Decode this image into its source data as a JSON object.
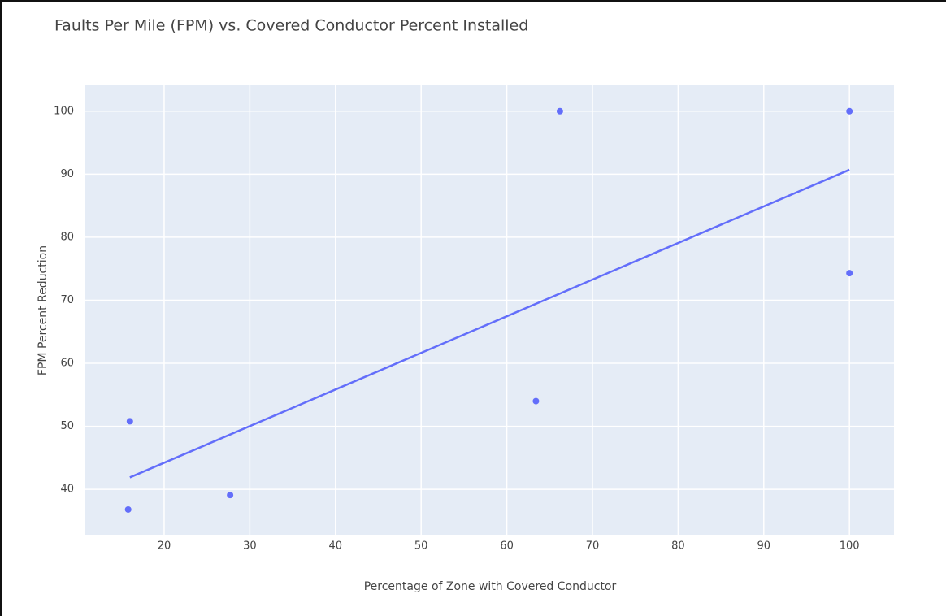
{
  "chart_data": {
    "type": "scatter",
    "title": "Faults Per Mile (FPM) vs. Covered Conductor Percent Installed",
    "x_label": "Percentage of Zone with Covered Conductor",
    "y_label": "FPM Percent Reduction",
    "xlim": [
      10.8,
      105.2
    ],
    "ylim": [
      32.8,
      104.1
    ],
    "xticks": [
      20,
      30,
      40,
      50,
      60,
      70,
      80,
      90,
      100
    ],
    "yticks": [
      40,
      50,
      60,
      70,
      80,
      90,
      100
    ],
    "grid": true,
    "background": "#e5ecf6",
    "series": [
      {
        "mode": "markers",
        "color": "#636efa",
        "x": [
          16.0,
          15.8,
          27.7,
          63.4,
          66.2,
          100,
          100
        ],
        "values": [
          50.8,
          36.8,
          39.1,
          54.0,
          100,
          100,
          74.3
        ]
      },
      {
        "mode": "lines",
        "color": "#636efa",
        "x": [
          16.0,
          100
        ],
        "values": [
          41.9,
          90.7
        ]
      }
    ]
  }
}
